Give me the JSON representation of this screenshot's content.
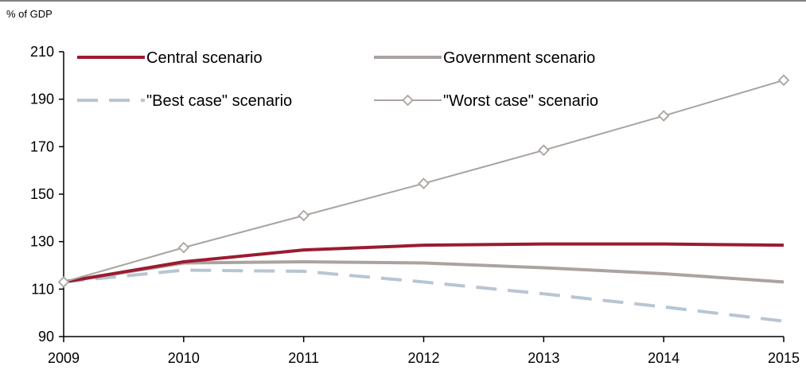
{
  "chart_data": {
    "type": "line",
    "unit_label": "% of GDP",
    "x": [
      "2009",
      "2010",
      "2011",
      "2012",
      "2013",
      "2014",
      "2015"
    ],
    "y_ticks": [
      "210",
      "190",
      "170",
      "150",
      "130",
      "110",
      "90"
    ],
    "ylim": [
      90,
      210
    ],
    "grid": false,
    "legend_placement": "top",
    "series": [
      {
        "name": "Central scenario",
        "color": "#9b1b30",
        "style": "solid-thick",
        "values": [
          113,
          121.5,
          126.5,
          128.5,
          129,
          129,
          128.5
        ]
      },
      {
        "name": "Government scenario",
        "color": "#aaa39f",
        "style": "solid-thick",
        "values": [
          113,
          121,
          121.5,
          121,
          119,
          116.5,
          113
        ]
      },
      {
        "name": "\"Best case\" scenario",
        "color": "#b8c5d3",
        "style": "dashed",
        "values": [
          113,
          118,
          117.5,
          113,
          108,
          102.5,
          96.5
        ]
      },
      {
        "name": "\"Worst case\" scenario",
        "color": "#aaa39f",
        "style": "thin-diamond",
        "values": [
          113,
          127.5,
          141,
          154.5,
          168.5,
          183,
          198
        ]
      }
    ]
  }
}
